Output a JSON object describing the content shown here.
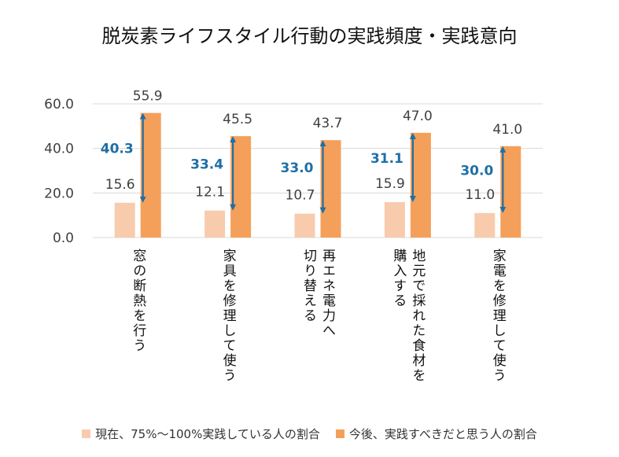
{
  "chart_data": {
    "type": "bar",
    "title": "脱炭素ライフスタイル行動の実践頻度・実践意向",
    "categories": [
      "窓の断熱を行う",
      "家具を修理して使う",
      "再エネ電力へ\n切り替える",
      "地元で採れた食材を\n購入する",
      "家電を修理して使う"
    ],
    "series": [
      {
        "name": "現在、75%～100%実践している人の割合",
        "values": [
          15.6,
          12.1,
          10.7,
          15.9,
          11.0
        ],
        "labels": [
          "15.6",
          "12.1",
          "10.7",
          "15.9",
          "11.0"
        ],
        "color": "#f8cbad"
      },
      {
        "name": "今後、実践すべきだと思う人の割合",
        "values": [
          55.9,
          45.5,
          43.7,
          47.0,
          41.0
        ],
        "labels": [
          "55.9",
          "45.5",
          "43.7",
          "47.0",
          "41.0"
        ],
        "color": "#f4a05a"
      }
    ],
    "gap_labels": [
      "40.3",
      "33.4",
      "33.0",
      "31.1",
      "30.0"
    ],
    "ylim": [
      0,
      60
    ],
    "yticks": [
      "0.0",
      "20.0",
      "40.0",
      "60.0"
    ],
    "ytick_values": [
      0,
      20,
      40,
      60
    ],
    "arrow_color": "#1f6fa6",
    "gridlines": true,
    "legend_position": "bottom"
  }
}
